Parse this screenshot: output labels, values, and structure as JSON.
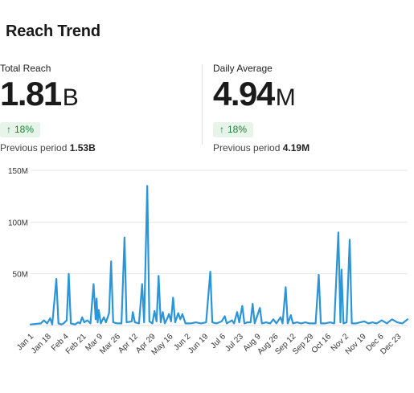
{
  "title": "Reach Trend",
  "metrics": [
    {
      "label": "Total Reach",
      "value": "1.81",
      "unit": "B",
      "change": "18%",
      "previous_label": "Previous period",
      "previous_value": "1.53B"
    },
    {
      "label": "Daily Average",
      "value": "4.94",
      "unit": "M",
      "change": "18%",
      "previous_label": "Previous period",
      "previous_value": "4.19M"
    }
  ],
  "colors": {
    "line": "#2b95d8",
    "grid": "#e6e6e6",
    "badge_bg": "#e6f4ea",
    "badge_text": "#1e7e34"
  },
  "icons": {
    "change": "arrow-up-icon"
  },
  "chart_data": {
    "type": "line",
    "title": "",
    "xlabel": "",
    "ylabel": "",
    "ylim": [
      0,
      150
    ],
    "yticks": [
      {
        "v": 50,
        "label": "50M"
      },
      {
        "v": 100,
        "label": "100M"
      },
      {
        "v": 150,
        "label": "150M"
      }
    ],
    "x_range": [
      0,
      365
    ],
    "xticks": [
      {
        "d": 0,
        "label": "Jan 1"
      },
      {
        "d": 17,
        "label": "Jan 18"
      },
      {
        "d": 34,
        "label": "Feb 4"
      },
      {
        "d": 51,
        "label": "Feb 21"
      },
      {
        "d": 67,
        "label": "Mar 9"
      },
      {
        "d": 84,
        "label": "Mar 26"
      },
      {
        "d": 101,
        "label": "Apr 12"
      },
      {
        "d": 118,
        "label": "Apr 29"
      },
      {
        "d": 135,
        "label": "May 16"
      },
      {
        "d": 152,
        "label": "Jun 2"
      },
      {
        "d": 169,
        "label": "Jun 19"
      },
      {
        "d": 186,
        "label": "Jul 6"
      },
      {
        "d": 203,
        "label": "Jul 23"
      },
      {
        "d": 220,
        "label": "Aug 9"
      },
      {
        "d": 237,
        "label": "Aug 26"
      },
      {
        "d": 254,
        "label": "Sep 12"
      },
      {
        "d": 271,
        "label": "Sep 29"
      },
      {
        "d": 288,
        "label": "Oct 16"
      },
      {
        "d": 305,
        "label": "Nov 2"
      },
      {
        "d": 322,
        "label": "Nov 19"
      },
      {
        "d": 339,
        "label": "Dec 6"
      },
      {
        "d": 356,
        "label": "Dec 23"
      }
    ],
    "series": [
      {
        "values": [
          [
            0,
            1
          ],
          [
            10,
            2
          ],
          [
            13,
            5
          ],
          [
            16,
            2
          ],
          [
            19,
            7
          ],
          [
            21,
            1
          ],
          [
            25,
            45
          ],
          [
            27,
            2
          ],
          [
            30,
            1
          ],
          [
            32,
            2
          ],
          [
            35,
            5
          ],
          [
            37,
            50
          ],
          [
            39,
            2
          ],
          [
            43,
            1
          ],
          [
            46,
            3
          ],
          [
            48,
            2
          ],
          [
            50,
            8
          ],
          [
            52,
            3
          ],
          [
            55,
            5
          ],
          [
            58,
            2
          ],
          [
            61,
            40
          ],
          [
            63,
            6
          ],
          [
            64,
            26
          ],
          [
            65,
            3
          ],
          [
            66,
            15
          ],
          [
            68,
            2
          ],
          [
            71,
            8
          ],
          [
            73,
            3
          ],
          [
            76,
            12
          ],
          [
            78,
            62
          ],
          [
            80,
            3
          ],
          [
            84,
            2
          ],
          [
            88,
            2
          ],
          [
            91,
            85
          ],
          [
            93,
            3
          ],
          [
            98,
            4
          ],
          [
            99,
            13
          ],
          [
            101,
            3
          ],
          [
            105,
            2
          ],
          [
            108,
            40
          ],
          [
            110,
            3
          ],
          [
            113,
            135
          ],
          [
            115,
            4
          ],
          [
            118,
            2
          ],
          [
            120,
            14
          ],
          [
            122,
            4
          ],
          [
            124,
            48
          ],
          [
            126,
            3
          ],
          [
            128,
            13
          ],
          [
            130,
            2
          ],
          [
            132,
            6
          ],
          [
            134,
            11
          ],
          [
            136,
            4
          ],
          [
            138,
            27
          ],
          [
            140,
            3
          ],
          [
            143,
            12
          ],
          [
            145,
            6
          ],
          [
            147,
            11
          ],
          [
            150,
            2
          ],
          [
            155,
            2
          ],
          [
            160,
            3
          ],
          [
            165,
            2
          ],
          [
            170,
            3
          ],
          [
            174,
            52
          ],
          [
            176,
            3
          ],
          [
            180,
            2
          ],
          [
            185,
            4
          ],
          [
            188,
            9
          ],
          [
            190,
            2
          ],
          [
            195,
            5
          ],
          [
            197,
            2
          ],
          [
            200,
            13
          ],
          [
            202,
            3
          ],
          [
            205,
            19
          ],
          [
            207,
            2
          ],
          [
            210,
            3
          ],
          [
            213,
            3
          ],
          [
            215,
            21
          ],
          [
            217,
            2
          ],
          [
            222,
            17
          ],
          [
            224,
            2
          ],
          [
            228,
            3
          ],
          [
            232,
            2
          ],
          [
            235,
            6
          ],
          [
            238,
            2
          ],
          [
            242,
            8
          ],
          [
            244,
            2
          ],
          [
            247,
            37
          ],
          [
            249,
            2
          ],
          [
            252,
            10
          ],
          [
            254,
            2
          ],
          [
            258,
            3
          ],
          [
            262,
            2
          ],
          [
            266,
            3
          ],
          [
            270,
            2
          ],
          [
            276,
            2
          ],
          [
            279,
            49
          ],
          [
            281,
            2
          ],
          [
            285,
            2
          ],
          [
            290,
            3
          ],
          [
            294,
            2
          ],
          [
            298,
            90
          ],
          [
            300,
            3
          ],
          [
            301,
            54
          ],
          [
            303,
            2
          ],
          [
            306,
            3
          ],
          [
            309,
            83
          ],
          [
            311,
            2
          ],
          [
            315,
            2
          ],
          [
            319,
            3
          ],
          [
            323,
            4
          ],
          [
            327,
            2
          ],
          [
            331,
            3
          ],
          [
            335,
            2
          ],
          [
            340,
            5
          ],
          [
            345,
            2
          ],
          [
            350,
            6
          ],
          [
            355,
            3
          ],
          [
            360,
            2
          ],
          [
            365,
            6
          ]
        ]
      }
    ]
  }
}
